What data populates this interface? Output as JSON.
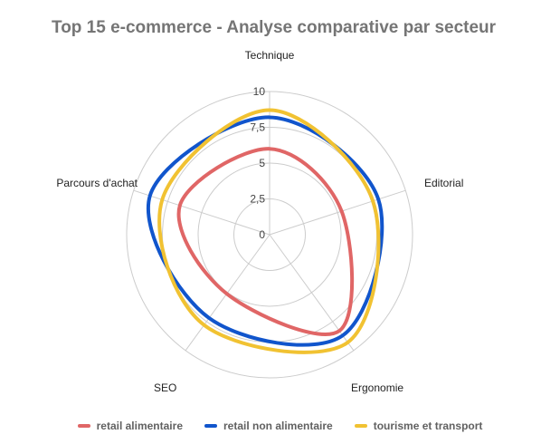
{
  "chart_data": {
    "type": "radar",
    "title": "Top 15 e-commerce - Analyse comparative par secteur",
    "axes": [
      "Technique",
      "Editorial",
      "Ergonomie",
      "SEO",
      "Parcours d'achat"
    ],
    "ticks": [
      "0",
      "2,5",
      "5",
      "7,5",
      "10"
    ],
    "tick_values": [
      0,
      2.5,
      5,
      7.5,
      10
    ],
    "rmax": 10,
    "grid": true,
    "legend_position": "bottom",
    "series": [
      {
        "name": "retail alimentaire",
        "color": "#e06666",
        "values": [
          6.0,
          5.3,
          8.3,
          5.1,
          6.6
        ]
      },
      {
        "name": "retail non alimentaire",
        "color": "#1155cc",
        "values": [
          8.2,
          8.0,
          8.7,
          7.2,
          8.8
        ]
      },
      {
        "name": "tourisme et transport",
        "color": "#f1c232",
        "values": [
          8.7,
          7.6,
          9.3,
          7.8,
          7.9
        ]
      }
    ]
  }
}
